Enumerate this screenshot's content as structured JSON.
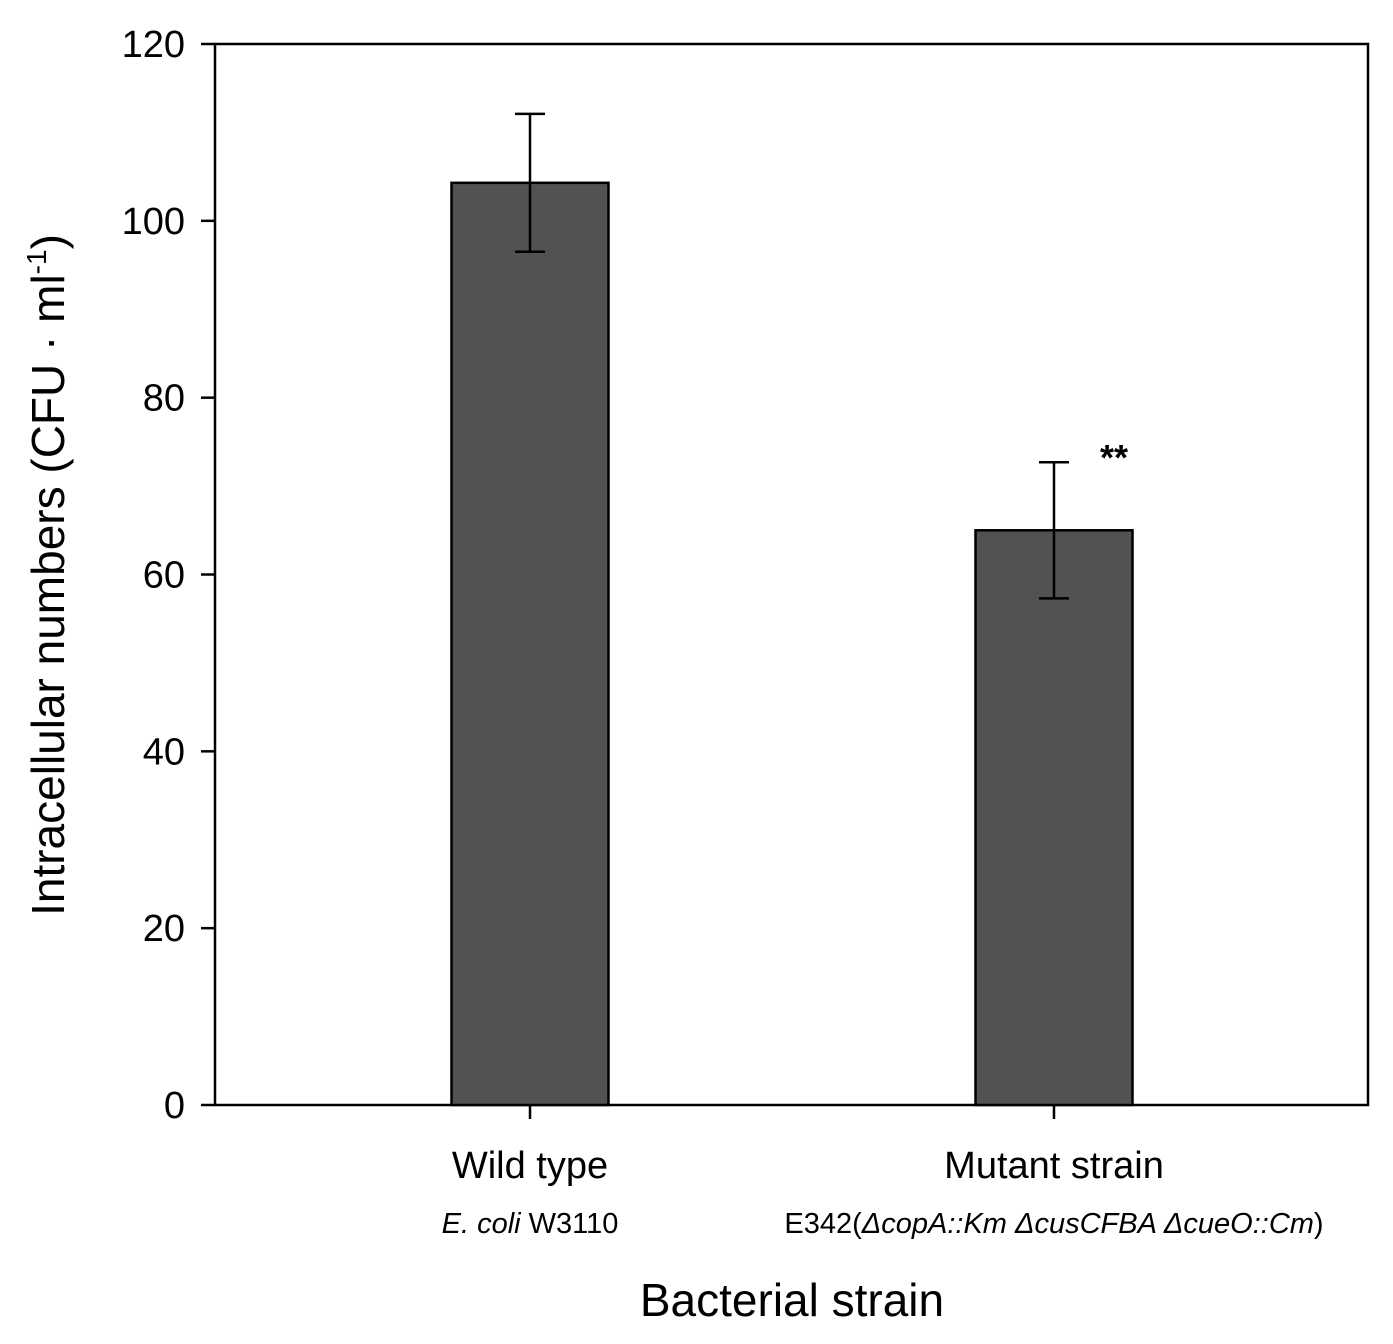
{
  "chart_data": {
    "type": "bar",
    "categories": [
      "Wild type",
      "Mutant strain"
    ],
    "category_sublabels": [
      [
        {
          "text": "E. coli",
          "italic": true
        },
        {
          "text": " W3110",
          "italic": false
        }
      ],
      [
        {
          "text": "E342(",
          "italic": false
        },
        {
          "text": "ΔcopA::Km ΔcusCFBA ΔcueO::Cm",
          "italic": true
        },
        {
          "text": ")",
          "italic": false
        }
      ]
    ],
    "values": [
      104.3,
      65.0
    ],
    "error": [
      7.8,
      7.7
    ],
    "annotations": [
      "",
      "**"
    ],
    "bar_color": "#525252",
    "xlabel": "Bacterial strain",
    "ylabel_main": "Intracellular numbers (CFU · ml",
    "ylabel_sup": "-1",
    "ylabel_close": ")",
    "ylim": [
      0,
      120
    ],
    "yticks": [
      0,
      20,
      40,
      60,
      80,
      100,
      120
    ],
    "grid": false,
    "legend": "none"
  }
}
